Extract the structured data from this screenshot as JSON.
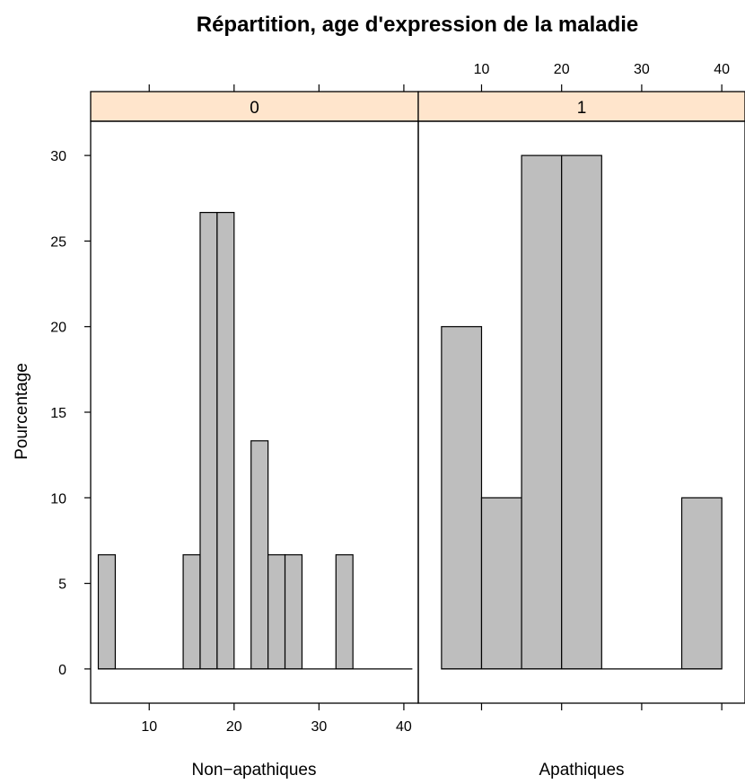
{
  "chart_data": {
    "type": "bar",
    "title": "Répartition, age d'expression de la maladie",
    "ylabel": "Pourcentage",
    "ylim": [
      -2,
      32
    ],
    "yticks": [
      "0",
      "5",
      "10",
      "15",
      "20",
      "25",
      "30"
    ],
    "grid": false,
    "legend": "none",
    "colors": {
      "bar_fill": "#bebebe",
      "strip_fill": "#ffe5cc",
      "frame": "#000000"
    },
    "panels": [
      {
        "strip_label": "0",
        "xlabel": "Non−apathiques",
        "xlim": [
          3.1,
          41.7
        ],
        "xticks": [
          "10",
          "20",
          "30",
          "40"
        ],
        "bins": [
          {
            "x0": 4,
            "x1": 6,
            "value": 6.67
          },
          {
            "x0": 6,
            "x1": 8,
            "value": 0
          },
          {
            "x0": 8,
            "x1": 10,
            "value": 0
          },
          {
            "x0": 10,
            "x1": 12,
            "value": 0
          },
          {
            "x0": 12,
            "x1": 14,
            "value": 0
          },
          {
            "x0": 14,
            "x1": 16,
            "value": 6.67
          },
          {
            "x0": 16,
            "x1": 18,
            "value": 26.67
          },
          {
            "x0": 18,
            "x1": 20,
            "value": 26.67
          },
          {
            "x0": 20,
            "x1": 22,
            "value": 0
          },
          {
            "x0": 22,
            "x1": 24,
            "value": 13.33
          },
          {
            "x0": 24,
            "x1": 26,
            "value": 6.67
          },
          {
            "x0": 26,
            "x1": 28,
            "value": 6.67
          },
          {
            "x0": 28,
            "x1": 30,
            "value": 0
          },
          {
            "x0": 30,
            "x1": 32,
            "value": 0
          },
          {
            "x0": 32,
            "x1": 34,
            "value": 6.67
          },
          {
            "x0": 34,
            "x1": 36,
            "value": 0
          },
          {
            "x0": 36,
            "x1": 38,
            "value": 0
          },
          {
            "x0": 38,
            "x1": 40,
            "value": 0
          },
          {
            "x0": 40,
            "x1": 41,
            "value": 0
          }
        ]
      },
      {
        "strip_label": "1",
        "xlabel": "Apathiques",
        "xlim": [
          2.1,
          42.9
        ],
        "xticks": [
          "10",
          "20",
          "30",
          "40"
        ],
        "bins": [
          {
            "x0": 5,
            "x1": 10,
            "value": 20
          },
          {
            "x0": 10,
            "x1": 15,
            "value": 10
          },
          {
            "x0": 15,
            "x1": 20,
            "value": 30
          },
          {
            "x0": 20,
            "x1": 25,
            "value": 30
          },
          {
            "x0": 25,
            "x1": 30,
            "value": 0
          },
          {
            "x0": 30,
            "x1": 35,
            "value": 0
          },
          {
            "x0": 35,
            "x1": 40,
            "value": 10
          }
        ]
      }
    ]
  }
}
